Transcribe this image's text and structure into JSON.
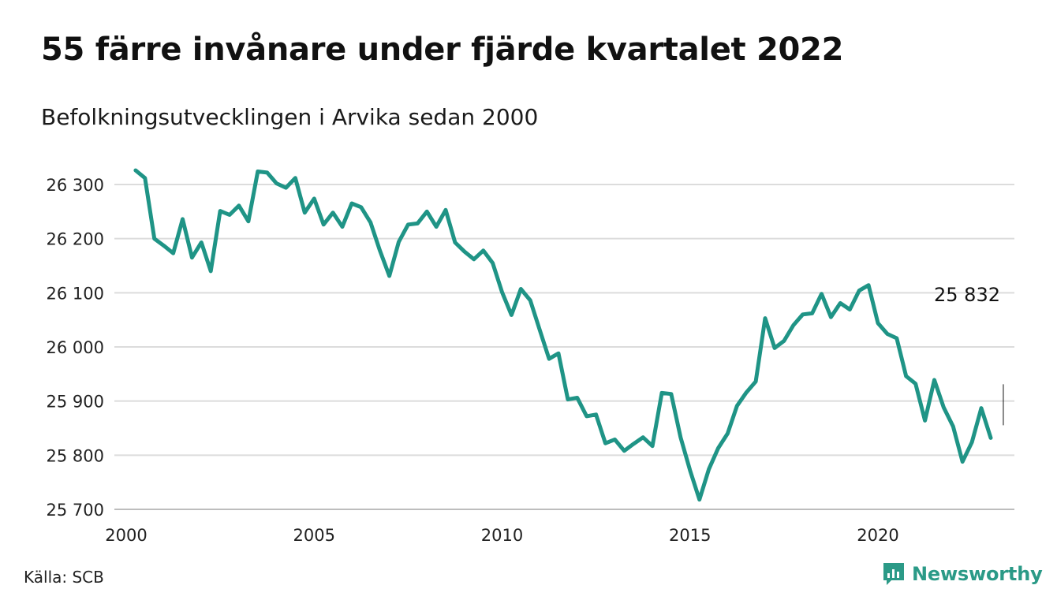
{
  "header": {
    "title": "55 färre invånare under fjärde kvartalet 2022",
    "subtitle": "Befolkningsutvecklingen i Arvika sedan 2000"
  },
  "footer": {
    "source": "Källa: SCB",
    "brand": "Newsworthy"
  },
  "colors": {
    "line": "#1f9486",
    "grid": "#dcdcdc",
    "brand": "#2b9a87"
  },
  "chart_data": {
    "type": "line",
    "title": "55 färre invånare under fjärde kvartalet 2022",
    "subtitle": "Befolkningsutvecklingen i Arvika sedan 2000",
    "xlabel": "",
    "ylabel": "",
    "xlim": [
      2000,
      2023.75
    ],
    "ylim": [
      25700,
      26330
    ],
    "x_ticks": [
      2000,
      2005,
      2010,
      2015,
      2020
    ],
    "y_ticks": [
      25700,
      25800,
      25900,
      26000,
      26100,
      26200,
      26300
    ],
    "y_tick_labels": [
      "25 700",
      "25 800",
      "25 900",
      "26 000",
      "26 100",
      "26 200",
      "26 300"
    ],
    "grid": "horizontal",
    "end_label": "25 832",
    "series": [
      {
        "x_start": 2000.25,
        "x_step": 0.25,
        "values": [
          26326,
          26312,
          26200,
          26187,
          26173,
          26236,
          26165,
          26193,
          26140,
          26251,
          26244,
          26261,
          26232,
          26324,
          26322,
          26302,
          26294,
          26312,
          26248,
          26274,
          26226,
          26248,
          26222,
          26265,
          26258,
          26230,
          26178,
          26131,
          26194,
          26226,
          26228,
          26250,
          26222,
          26253,
          26193,
          26176,
          26162,
          26178,
          26155,
          26101,
          26059,
          26107,
          26086,
          26032,
          25978,
          25988,
          25903,
          25906,
          25872,
          25875,
          25822,
          25829,
          25808,
          25821,
          25833,
          25817,
          25915,
          25913,
          25833,
          25772,
          25718,
          25774,
          25813,
          25840,
          25891,
          25916,
          25936,
          26053,
          25998,
          26011,
          26040,
          26060,
          26062,
          26098,
          26055,
          26081,
          26069,
          26104,
          26114,
          26044,
          26024,
          26016,
          25946,
          25932,
          25864,
          25939,
          25888,
          25853,
          25788,
          25824,
          25887,
          25832
        ]
      }
    ]
  }
}
